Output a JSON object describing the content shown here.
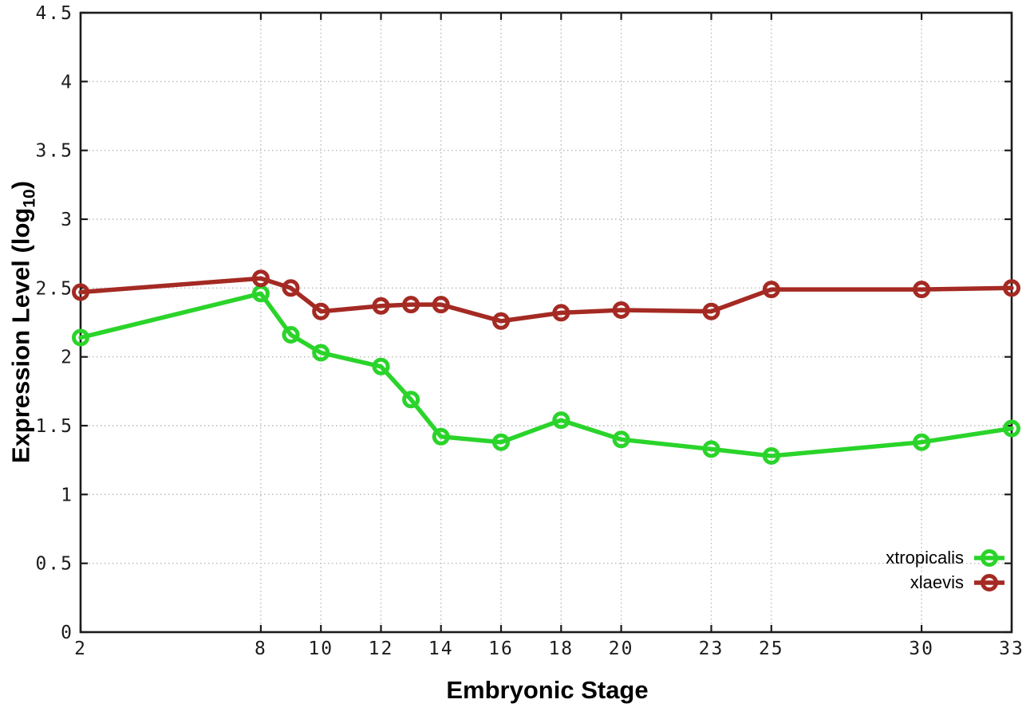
{
  "chart_data": {
    "type": "line",
    "xlabel": "Embryonic Stage",
    "ylabel": "Expression Level (log10)",
    "ylabel_main": "Expression Level (log",
    "ylabel_sub": "10",
    "ylabel_suffix": ")",
    "xlim": [
      2,
      33
    ],
    "ylim": [
      0,
      4.5
    ],
    "grid": true,
    "legend_position": "bottom-right",
    "x": [
      2,
      8,
      9,
      10,
      12,
      13,
      14,
      16,
      18,
      20,
      23,
      25,
      30,
      33
    ],
    "x_tick_values": [
      2,
      8,
      10,
      12,
      14,
      16,
      18,
      20,
      23,
      25,
      30,
      33
    ],
    "x_tick_labels": [
      "2",
      "8",
      "10",
      "12",
      "14",
      "16",
      "18",
      "20",
      "23",
      "25",
      "30",
      "33"
    ],
    "y_tick_values": [
      0,
      0.5,
      1,
      1.5,
      2,
      2.5,
      3,
      3.5,
      4,
      4.5
    ],
    "y_tick_labels": [
      "0",
      "0.5",
      "1",
      "1.5",
      "2",
      "2.5",
      "3",
      "3.5",
      "4",
      "4.5"
    ],
    "series": [
      {
        "name": "xtropicalis",
        "color": "#2ad42a",
        "values": [
          2.14,
          2.46,
          2.16,
          2.03,
          1.93,
          1.69,
          1.42,
          1.38,
          1.54,
          1.4,
          1.33,
          1.28,
          1.38,
          1.48
        ]
      },
      {
        "name": "xlaevis",
        "color": "#a42a23",
        "values": [
          2.47,
          2.57,
          2.5,
          2.33,
          2.37,
          2.38,
          2.38,
          2.26,
          2.32,
          2.34,
          2.33,
          2.49,
          2.49,
          2.5
        ]
      }
    ]
  },
  "colors": {
    "background": "#ffffff",
    "grid": "#b9b9b9",
    "axis": "#1c1c1c",
    "text": "#000000"
  }
}
